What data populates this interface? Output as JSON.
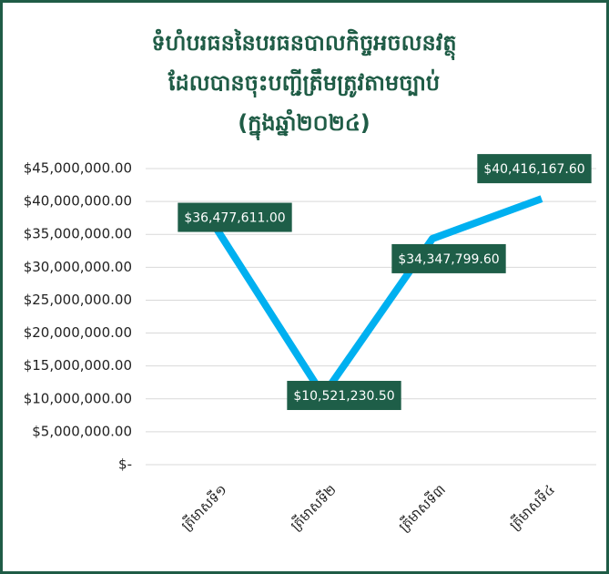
{
  "chart_data": {
    "type": "line",
    "title": [
      "ទំហំបរធននៃបរធនបាលកិច្ចអចលនវត្ថុ",
      "ដែលបានចុះបញ្ជីត្រឹមត្រូវតាមច្បាប់",
      "(ក្នុងឆ្នាំ២០២៤)"
    ],
    "categories": [
      "ត្រីមាសទី១",
      "ត្រីមាសទី២",
      "ត្រីមាសទី៣",
      "ត្រីមាសទី៤"
    ],
    "values": [
      36477611.0,
      10521230.5,
      34347799.6,
      40416167.6
    ],
    "value_labels": [
      "$36,477,611.00",
      "$10,521,230.50",
      "$34,347,799.60",
      "$40,416,167.60"
    ],
    "color": "#00b0f0",
    "label_color": "#1e5e48",
    "ylim": [
      0,
      45000000
    ],
    "yticks": [
      {
        "value": 0,
        "label": "$-"
      },
      {
        "value": 5000000,
        "label": "$5,000,000.00"
      },
      {
        "value": 10000000,
        "label": "$10,000,000.00"
      },
      {
        "value": 15000000,
        "label": "$15,000,000.00"
      },
      {
        "value": 20000000,
        "label": "$20,000,000.00"
      },
      {
        "value": 25000000,
        "label": "$25,000,000.00"
      },
      {
        "value": 30000000,
        "label": "$30,000,000.00"
      },
      {
        "value": 35000000,
        "label": "$35,000,000.00"
      },
      {
        "value": 40000000,
        "label": "$40,000,000.00"
      },
      {
        "value": 45000000,
        "label": "$45,000,000.00"
      }
    ],
    "grid": true
  }
}
